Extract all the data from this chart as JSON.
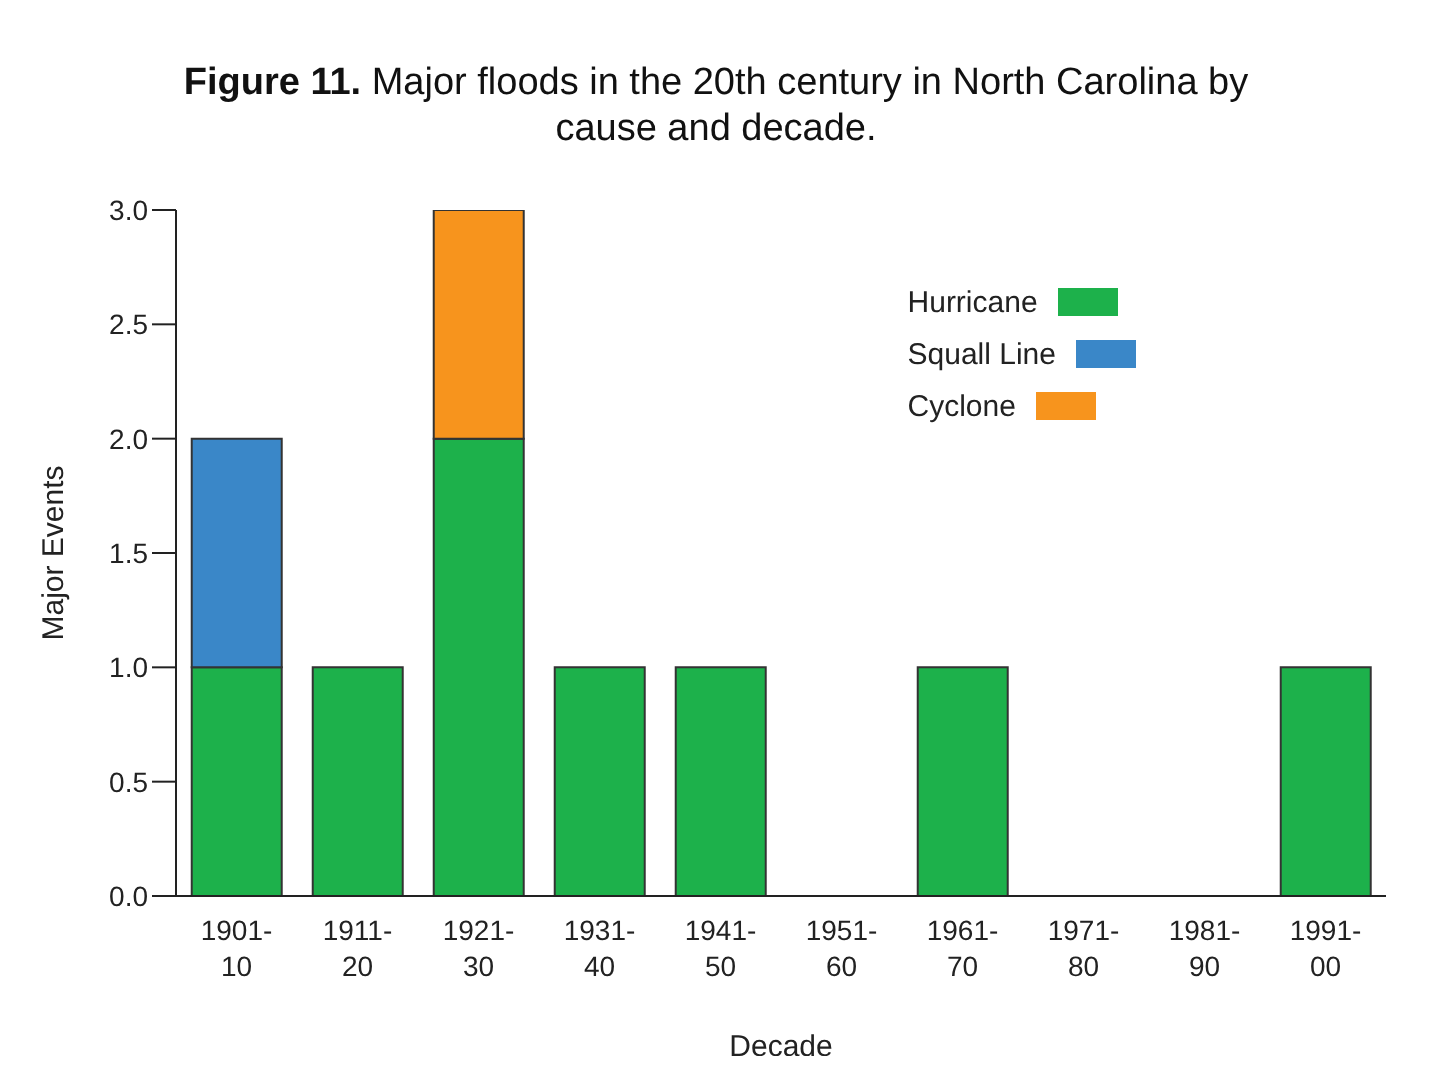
{
  "chart_data": {
    "type": "bar",
    "title": "Figure 11.",
    "subtitle": "Major floods in the 20th century in North Carolina by cause and decade.",
    "xlabel": "Decade",
    "ylabel": "Major Events",
    "categories": [
      "1901-10",
      "1911-20",
      "1921-30",
      "1931-40",
      "1941-50",
      "1951-60",
      "1961-70",
      "1971-80",
      "1981-90",
      "1991-00"
    ],
    "series": [
      {
        "name": "Hurricane",
        "color": "#1db14b",
        "values": [
          1,
          1,
          2,
          1,
          1,
          0,
          1,
          0,
          0,
          1
        ]
      },
      {
        "name": "Squall Line",
        "color": "#3a87c8",
        "values": [
          1,
          0,
          0,
          0,
          0,
          0,
          0,
          0,
          0,
          0
        ]
      },
      {
        "name": "Cyclone",
        "color": "#f7941d",
        "values": [
          0,
          0,
          1,
          0,
          0,
          0,
          0,
          0,
          0,
          0
        ]
      }
    ],
    "stacked": true,
    "ylim": [
      0,
      3
    ],
    "yticks": [
      {
        "value": 0,
        "label": "0.0"
      },
      {
        "value": 0.5,
        "label": "0.5"
      },
      {
        "value": 1,
        "label": "1.0"
      },
      {
        "value": 1.5,
        "label": "1.5"
      },
      {
        "value": 2,
        "label": "2.0"
      },
      {
        "value": 2.5,
        "label": "2.5"
      },
      {
        "value": 3,
        "label": "3.0"
      }
    ],
    "grid": false,
    "legend": "top right"
  }
}
